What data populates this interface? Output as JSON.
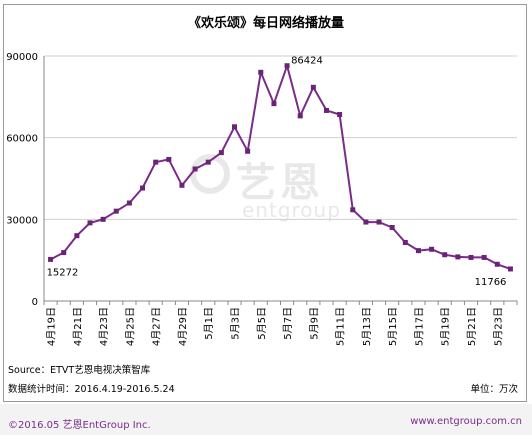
{
  "chart_data": {
    "type": "line",
    "title": "《欢乐颂》每日网络播放量",
    "xlabel": "",
    "ylabel": "",
    "ylim": [
      0,
      90000
    ],
    "yticks": [
      "0",
      "30000",
      "60000",
      "90000"
    ],
    "grid": true,
    "legend": "none",
    "x_tick_labels": [
      "4月19日",
      "4月21日",
      "4月23日",
      "4月25日",
      "4月27日",
      "4月29日",
      "5月1日",
      "5月3日",
      "5月5日",
      "5月7日",
      "5月9日",
      "5月11日",
      "5月13日",
      "5月15日",
      "5月17日",
      "5月19日",
      "5月21日",
      "5月23日"
    ],
    "x": [
      "4月19日",
      "4月20日",
      "4月21日",
      "4月22日",
      "4月23日",
      "4月24日",
      "4月25日",
      "4月26日",
      "4月27日",
      "4月28日",
      "4月29日",
      "4月30日",
      "5月1日",
      "5月2日",
      "5月3日",
      "5月4日",
      "5月5日",
      "5月6日",
      "5月7日",
      "5月8日",
      "5月9日",
      "5月10日",
      "5月11日",
      "5月12日",
      "5月13日",
      "5月14日",
      "5月15日",
      "5月16日",
      "5月17日",
      "5月18日",
      "5月19日",
      "5月20日",
      "5月21日",
      "5月22日",
      "5月23日",
      "5月24日"
    ],
    "series": [
      {
        "values": [
          15272,
          17800,
          24000,
          28700,
          30000,
          33000,
          36000,
          41500,
          51000,
          52000,
          42500,
          48500,
          51000,
          54500,
          64000,
          55000,
          84000,
          72500,
          86424,
          68000,
          78500,
          70000,
          68500,
          33500,
          29000,
          29000,
          27000,
          21500,
          18500,
          19000,
          17000,
          16200,
          16000,
          16000,
          13500,
          11766
        ]
      }
    ],
    "data_labels": [
      {
        "index": 0,
        "text": "15272"
      },
      {
        "index": 18,
        "text": "86424"
      },
      {
        "index": 35,
        "text": "11766"
      }
    ],
    "colors": {
      "line": "#7b2b8a",
      "marker": "#6a2476",
      "grid": "#cfcfcf",
      "axis": "#8a8a8a"
    }
  },
  "source_line": "Source：ETVT艺恩电视决策智库",
  "stats_period": "数据统计时间：2016.4.19-2016.5.24",
  "unit_label": "单位：万次",
  "footer": {
    "copyright": "©2016.05 艺恩EntGroup Inc.",
    "website": "www.entgroup.com.cn"
  },
  "watermark": {
    "cn": "艺恩",
    "en": "entgroup"
  }
}
